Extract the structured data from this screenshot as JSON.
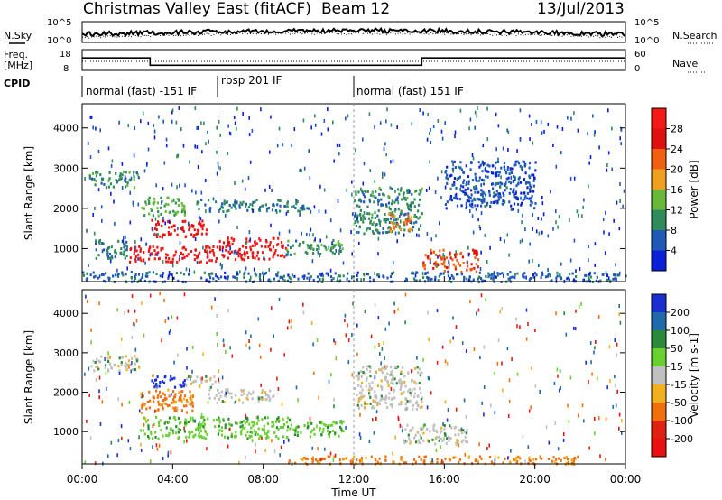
{
  "header": {
    "title": "Christmas Valley East (fitACF)",
    "beam": "Beam 12",
    "date": "13/Jul/2013"
  },
  "top_panels": {
    "nsky_label": "N.Sky",
    "nsearch_label": "N.Search",
    "nsky_ticks": [
      "10^5",
      "10^0"
    ],
    "nsearch_ticks": [
      "10^5",
      "10^0"
    ],
    "freq_label_line1": "Freq.",
    "freq_label_line2": "[MHz]",
    "freq_ticks": [
      "18",
      "8"
    ],
    "nave_label": "Nave",
    "nave_ticks": [
      "60",
      "0"
    ],
    "cpid_label": "CPID",
    "cpid_segments": [
      {
        "label": "normal (fast) -151 IF",
        "start_hour": 0,
        "end_hour": 6
      },
      {
        "label": "rbsp 201 IF",
        "start_hour": 6,
        "end_hour": 12
      },
      {
        "label": "normal (fast) 151 IF",
        "start_hour": 12,
        "end_hour": 24
      }
    ]
  },
  "power_panel": {
    "ylabel": "Slant Range [km]",
    "yticks": [
      "1000",
      "2000",
      "3000",
      "4000"
    ],
    "colorbar_label": "Power [dB]",
    "colorbar_ticks": [
      "4",
      "8",
      "12",
      "16",
      "20",
      "24",
      "28"
    ],
    "colors": [
      "#0a1fd8",
      "#1f59b8",
      "#2f8a5c",
      "#6ab83a",
      "#f0a020",
      "#f06010",
      "#e01010",
      "#f41818"
    ]
  },
  "velocity_panel": {
    "ylabel": "Slant Range [km]",
    "yticks": [
      "1000",
      "2000",
      "3000",
      "4000"
    ],
    "colorbar_label": "Velocity [m s-1]",
    "colorbar_ticks": [
      "200",
      "100",
      "50",
      "15",
      "-15",
      "-50",
      "-100",
      "-200"
    ],
    "colors": [
      "#1a2fd0",
      "#1f6aa8",
      "#2a8a3a",
      "#6ad030",
      "#c0c0c0",
      "#f0b020",
      "#f07010",
      "#e02010",
      "#e81010"
    ]
  },
  "xaxis": {
    "label": "Time UT",
    "ticks": [
      "00:00",
      "04:00",
      "08:00",
      "12:00",
      "16:00",
      "20:00",
      "00:00"
    ]
  },
  "chart_data": [
    {
      "type": "heatmap",
      "title": "Power [dB]",
      "xlabel": "Time UT",
      "ylabel": "Slant Range [km]",
      "xlim": [
        0,
        24
      ],
      "ylim": [
        180,
        4600
      ],
      "clim": [
        0,
        30
      ],
      "regions": [
        {
          "t": [
            0.3,
            2.5
          ],
          "r": [
            2550,
            2950
          ],
          "value": 10
        },
        {
          "t": [
            2.5,
            4.5
          ],
          "r": [
            1850,
            2300
          ],
          "value": 12
        },
        {
          "t": [
            3.0,
            5.5
          ],
          "r": [
            1300,
            1750
          ],
          "value": 26
        },
        {
          "t": [
            0.5,
            2.0
          ],
          "r": [
            780,
            1250
          ],
          "value": 8
        },
        {
          "t": [
            2.0,
            6.0
          ],
          "r": [
            680,
            1100
          ],
          "value": 28
        },
        {
          "t": [
            6.0,
            9.0
          ],
          "r": [
            750,
            1300
          ],
          "value": 27
        },
        {
          "t": [
            9.0,
            11.5
          ],
          "r": [
            880,
            1250
          ],
          "value": 10
        },
        {
          "t": [
            5.0,
            10.0
          ],
          "r": [
            1950,
            2250
          ],
          "value": 8
        },
        {
          "t": [
            12.0,
            15.0
          ],
          "r": [
            1400,
            2550
          ],
          "value": 9
        },
        {
          "t": [
            13.5,
            14.5
          ],
          "r": [
            1450,
            1900
          ],
          "value": 18
        },
        {
          "t": [
            15.0,
            17.5
          ],
          "r": [
            450,
            1000
          ],
          "value": 22
        },
        {
          "t": [
            16.0,
            20.0
          ],
          "r": [
            2000,
            3200
          ],
          "value": 5
        },
        {
          "t": [
            0,
            24
          ],
          "r": [
            200,
            450
          ],
          "value": 6
        }
      ]
    },
    {
      "type": "heatmap",
      "title": "Velocity [m s-1]",
      "xlabel": "Time UT",
      "ylabel": "Slant Range [km]",
      "xlim": [
        0,
        24
      ],
      "ylim": [
        180,
        4600
      ],
      "clim": [
        -200,
        200
      ],
      "regions": [
        {
          "t": [
            0.3,
            2.5
          ],
          "r": [
            2550,
            2950
          ],
          "value": 0
        },
        {
          "t": [
            3.0,
            4.5
          ],
          "r": [
            2150,
            2450
          ],
          "value": 180
        },
        {
          "t": [
            4.5,
            6.0
          ],
          "r": [
            2150,
            2450
          ],
          "value": 0
        },
        {
          "t": [
            2.5,
            5.0
          ],
          "r": [
            1500,
            2100
          ],
          "value": -60
        },
        {
          "t": [
            2.5,
            9.5
          ],
          "r": [
            850,
            1400
          ],
          "value": 40
        },
        {
          "t": [
            5.5,
            8.5
          ],
          "r": [
            1750,
            2100
          ],
          "value": 0
        },
        {
          "t": [
            9.5,
            11.5
          ],
          "r": [
            900,
            1300
          ],
          "value": 40
        },
        {
          "t": [
            12.0,
            15.0
          ],
          "r": [
            1600,
            2700
          ],
          "value": 0
        },
        {
          "t": [
            14.0,
            17.0
          ],
          "r": [
            700,
            1200
          ],
          "value": 0
        },
        {
          "t": [
            9.0,
            22.0
          ],
          "r": [
            200,
            400
          ],
          "value": -60
        }
      ]
    }
  ]
}
